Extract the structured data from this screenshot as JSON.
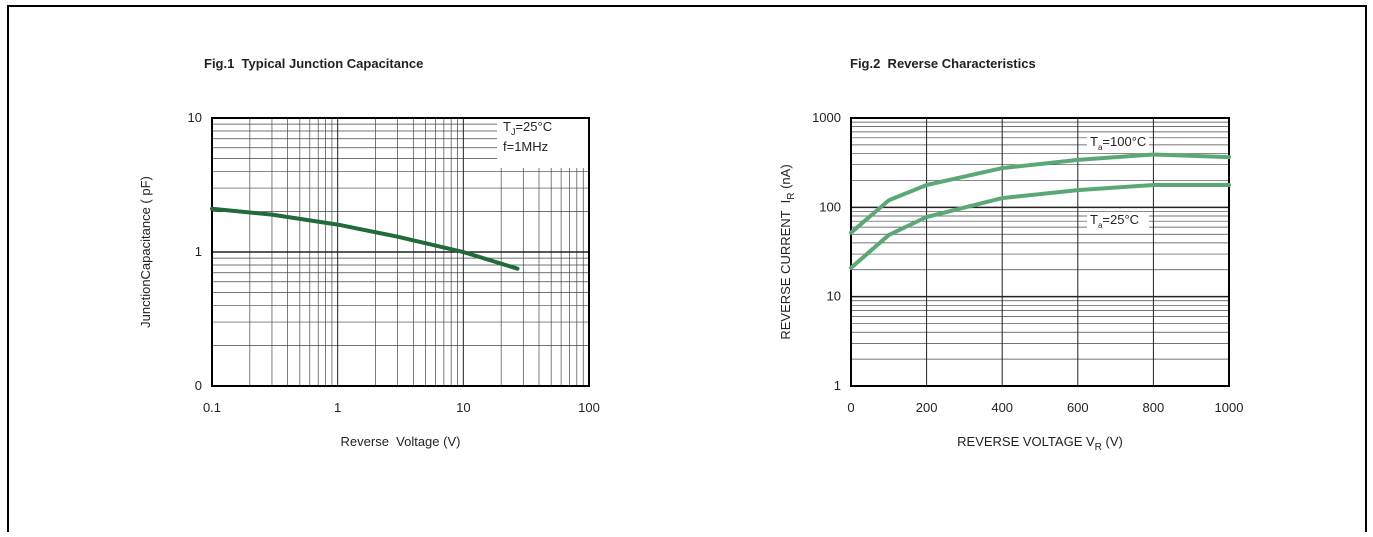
{
  "chart_data": [
    {
      "type": "line",
      "title": "Fig.1  Typical Junction Capacitance",
      "xlabel": [
        "Reverse  Voltage (V)"
      ],
      "ylabel": [
        "JunctionCapacitance ( pF)"
      ],
      "xscale": "log",
      "yscale": "log",
      "grid": true,
      "minor_grid": true,
      "xlim": [
        0.1,
        100
      ],
      "ylim": [
        0.1,
        10
      ],
      "xticks": [
        0.1,
        1,
        10,
        100
      ],
      "yticks": [
        {
          "value": 0.1,
          "label": "0"
        },
        1,
        10
      ],
      "x": [
        0.1,
        0.3,
        1,
        3,
        10,
        27
      ],
      "series": [
        {
          "color": "#1f6b3a",
          "values": [
            2.1,
            1.9,
            1.6,
            1.3,
            1.0,
            0.75
          ]
        }
      ],
      "annotations": [
        [
          "T",
          "J",
          "=25°C"
        ],
        [
          "f=1MHz"
        ]
      ]
    },
    {
      "type": "line",
      "title": "Fig.2  Reverse Characteristics",
      "xlabel": [
        "REVERSE VOLTAGE V",
        "R",
        " (V)"
      ],
      "ylabel": [
        "REVERSE CURRENT  I",
        "R",
        " (nA)"
      ],
      "xscale": "linear",
      "yscale": "log",
      "grid": true,
      "minor_grid": true,
      "xlim": [
        0,
        1000
      ],
      "ylim": [
        1,
        1000
      ],
      "xticks": [
        0,
        200,
        400,
        600,
        800,
        1000
      ],
      "yticks": [
        1,
        10,
        100,
        1000
      ],
      "x": [
        0,
        100,
        200,
        400,
        600,
        800,
        1000
      ],
      "series": [
        {
          "color": "#5aa874",
          "values": [
            52,
            120,
            178,
            275,
            340,
            390,
            365
          ]
        },
        {
          "color": "#5aa874",
          "values": [
            21,
            49,
            78,
            127,
            156,
            178,
            178
          ]
        }
      ],
      "annotations": [
        [
          "T",
          "a",
          "=100°C"
        ],
        [
          "T",
          "a",
          "=25°C"
        ]
      ]
    }
  ]
}
